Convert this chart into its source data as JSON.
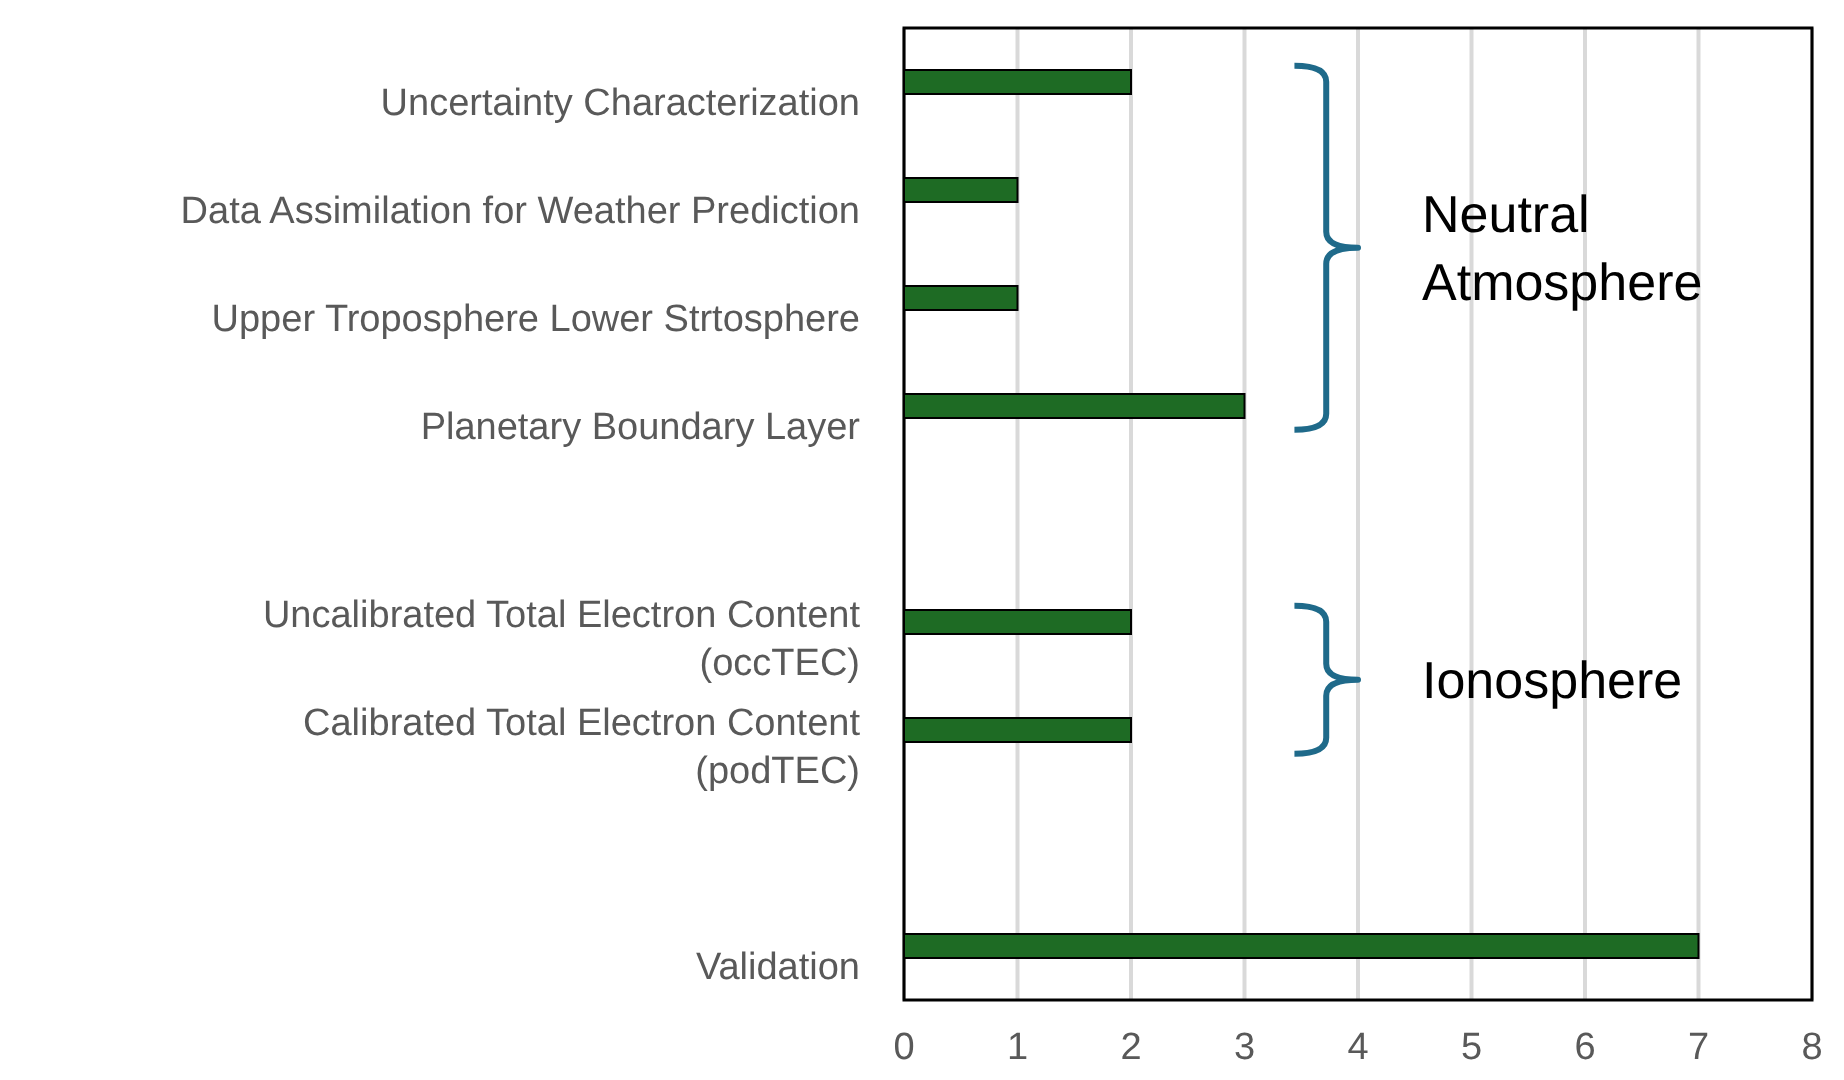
{
  "chart_data": {
    "type": "bar",
    "orientation": "horizontal",
    "categories": [
      "Uncertainty Characterization",
      "Data Assimilation for Weather Prediction",
      "Upper Troposphere Lower Strtosphere",
      "Planetary Boundary Layer",
      null,
      "Uncalibrated Total Electron Content (occTEC)",
      "Calibrated Total Electron Content (podTEC)",
      null,
      "Validation"
    ],
    "values": [
      2,
      1,
      1,
      3,
      null,
      2,
      2,
      null,
      7
    ],
    "color": "#1e6b24",
    "xlim": [
      0,
      8
    ],
    "xticks": [
      0,
      1,
      2,
      3,
      4,
      5,
      6,
      7,
      8
    ],
    "grid": "x",
    "annotations": [
      "Neutral Atmosphere",
      "Ionosphere"
    ]
  }
}
